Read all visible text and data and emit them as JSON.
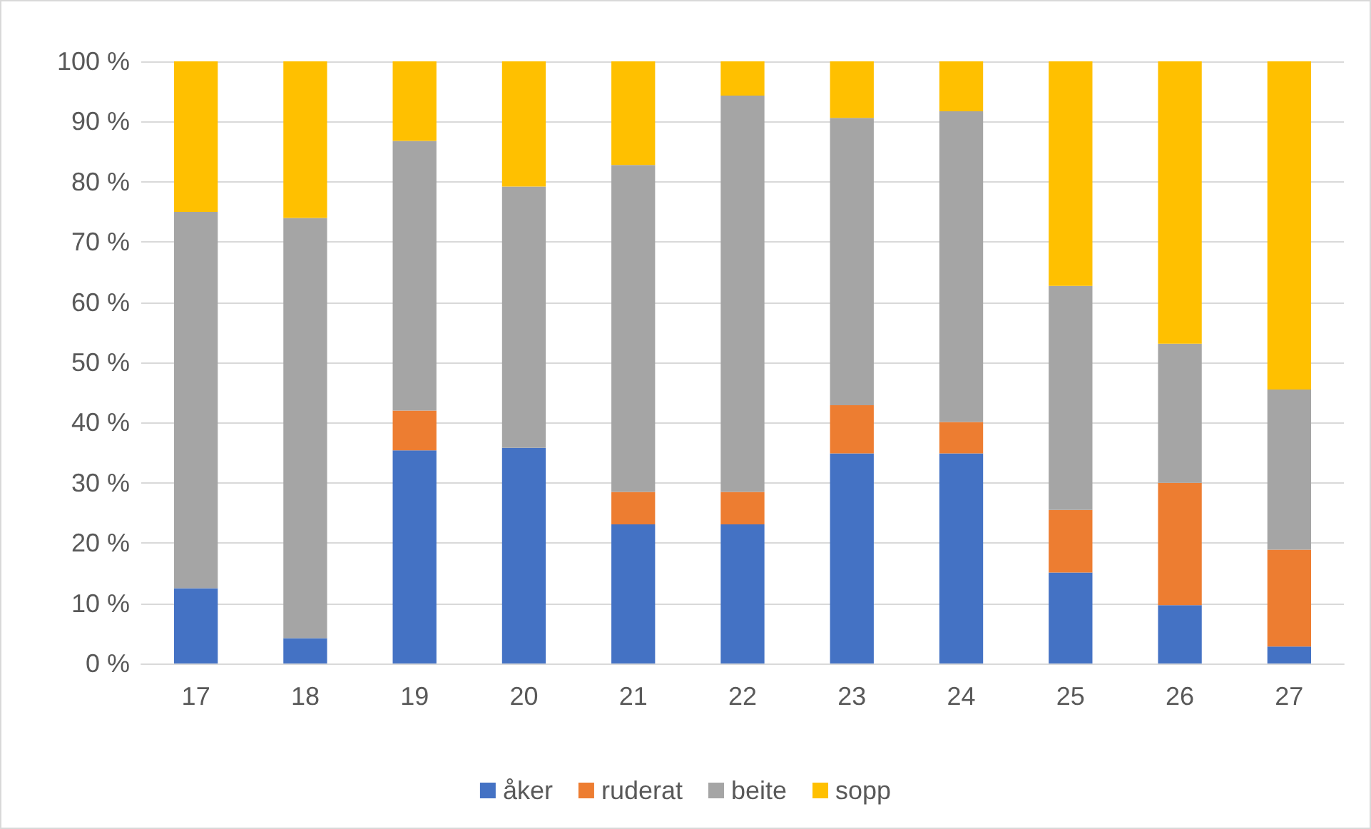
{
  "chart_data": {
    "type": "bar",
    "stacked": true,
    "categories": [
      "17",
      "18",
      "19",
      "20",
      "21",
      "22",
      "23",
      "24",
      "25",
      "26",
      "27"
    ],
    "series": [
      {
        "name": "åker",
        "color": "#4472c4",
        "values": [
          12.5,
          4.2,
          35.4,
          35.8,
          23.1,
          23.1,
          34.9,
          34.9,
          15.1,
          9.7,
          2.8
        ]
      },
      {
        "name": "ruderat",
        "color": "#ed7d31",
        "values": [
          0,
          0,
          6.6,
          0,
          5.4,
          5.4,
          8,
          5.2,
          10.4,
          20.3,
          16.1
        ]
      },
      {
        "name": "beite",
        "color": "#a5a5a5",
        "values": [
          62.5,
          69.8,
          44.8,
          43.4,
          54.3,
          65.8,
          47.7,
          51.6,
          37.2,
          23.1,
          26.6
        ]
      },
      {
        "name": "sopp",
        "color": "#ffc000",
        "values": [
          25,
          26,
          13.2,
          20.8,
          17.2,
          5.7,
          9.4,
          8.3,
          37.3,
          46.9,
          54.5
        ]
      }
    ],
    "ylim": [
      0,
      100
    ],
    "yticks": [
      {
        "value": 0,
        "label": "0 %"
      },
      {
        "value": 10,
        "label": "10 %"
      },
      {
        "value": 20,
        "label": "20 %"
      },
      {
        "value": 30,
        "label": "30 %"
      },
      {
        "value": 40,
        "label": "40 %"
      },
      {
        "value": 50,
        "label": "50 %"
      },
      {
        "value": 60,
        "label": "60 %"
      },
      {
        "value": 70,
        "label": "70 %"
      },
      {
        "value": 80,
        "label": "80 %"
      },
      {
        "value": 90,
        "label": "90 %"
      },
      {
        "value": 100,
        "label": "100 %"
      }
    ],
    "grid": "y",
    "legend": "bottom"
  }
}
